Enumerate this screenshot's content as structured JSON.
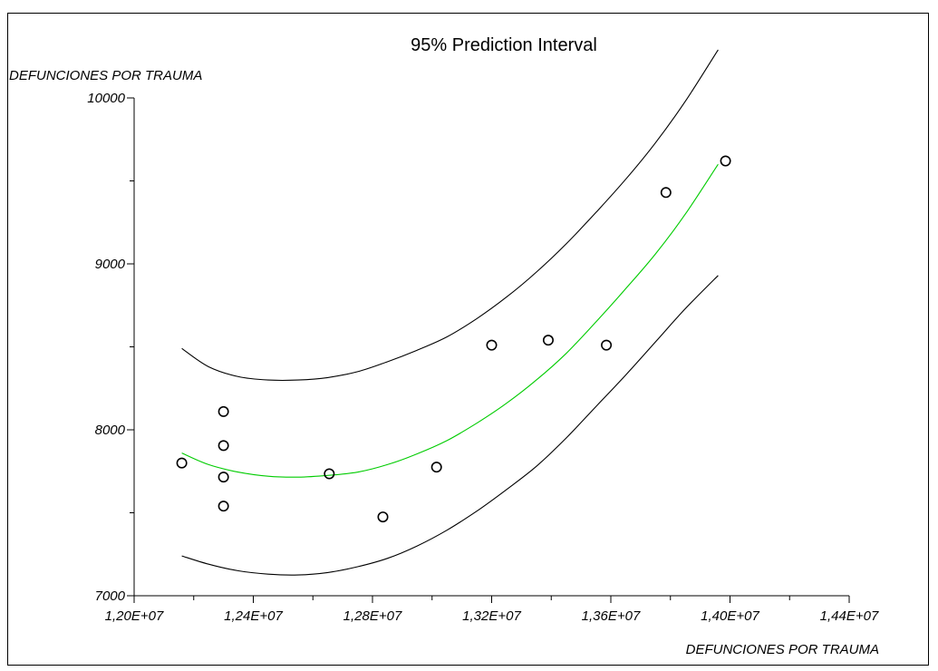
{
  "chart_data": {
    "type": "scatter",
    "title": "95% Prediction Interval",
    "xlabel": "DEFUNCIONES POR TRAUMA",
    "ylabel": "DEFUNCIONES POR TRAUMA",
    "xlim": [
      12000000,
      14400000
    ],
    "ylim": [
      7000,
      10000
    ],
    "x_ticks": [
      12000000,
      12400000,
      12800000,
      13200000,
      13600000,
      14000000,
      14400000
    ],
    "x_tick_labels": [
      "1,20E+07",
      "1,24E+07",
      "1,28E+07",
      "1,32E+07",
      "1,36E+07",
      "1,40E+07",
      "1,44E+07"
    ],
    "y_ticks": [
      7000,
      8000,
      9000,
      10000
    ],
    "y_tick_labels": [
      "7000",
      "8000",
      "9000",
      "10000"
    ],
    "grid": false,
    "colors": {
      "points": "#000000",
      "fit": "#00cc00",
      "bounds": "#000000"
    },
    "series": [
      {
        "kind": "points",
        "x": [
          12160000,
          12300000,
          12300000,
          12300000,
          12300000,
          12655000,
          12835000,
          13015000,
          13200000,
          13390000,
          13585000,
          13785000,
          13985000
        ],
        "y": [
          7800,
          8110,
          7905,
          7715,
          7540,
          7735,
          7475,
          7775,
          8510,
          8540,
          8510,
          9430,
          9620
        ]
      },
      {
        "kind": "fit",
        "x": [
          12160000,
          12250000,
          12350000,
          12450000,
          12550000,
          12650000,
          12750000,
          12850000,
          12950000,
          13050000,
          13150000,
          13250000,
          13350000,
          13450000,
          13550000,
          13650000,
          13750000,
          13850000,
          13960000
        ],
        "y": [
          7860,
          7790,
          7745,
          7720,
          7715,
          7725,
          7745,
          7790,
          7855,
          7935,
          8040,
          8160,
          8300,
          8460,
          8650,
          8850,
          9060,
          9300,
          9600
        ]
      },
      {
        "kind": "upper",
        "x": [
          12160000,
          12250000,
          12350000,
          12450000,
          12550000,
          12650000,
          12750000,
          12850000,
          12950000,
          13050000,
          13150000,
          13250000,
          13350000,
          13450000,
          13550000,
          13650000,
          13750000,
          13850000,
          13960000
        ],
        "y": [
          8490,
          8380,
          8320,
          8300,
          8300,
          8315,
          8350,
          8410,
          8480,
          8560,
          8670,
          8800,
          8950,
          9120,
          9310,
          9510,
          9730,
          9980,
          10290
        ]
      },
      {
        "kind": "lower",
        "x": [
          12160000,
          12250000,
          12350000,
          12450000,
          12550000,
          12650000,
          12750000,
          12850000,
          12950000,
          13050000,
          13150000,
          13250000,
          13350000,
          13450000,
          13550000,
          13650000,
          13750000,
          13850000,
          13960000
        ],
        "y": [
          7240,
          7190,
          7150,
          7130,
          7125,
          7140,
          7175,
          7225,
          7300,
          7395,
          7510,
          7640,
          7780,
          7950,
          8140,
          8330,
          8530,
          8730,
          8930
        ]
      }
    ]
  }
}
